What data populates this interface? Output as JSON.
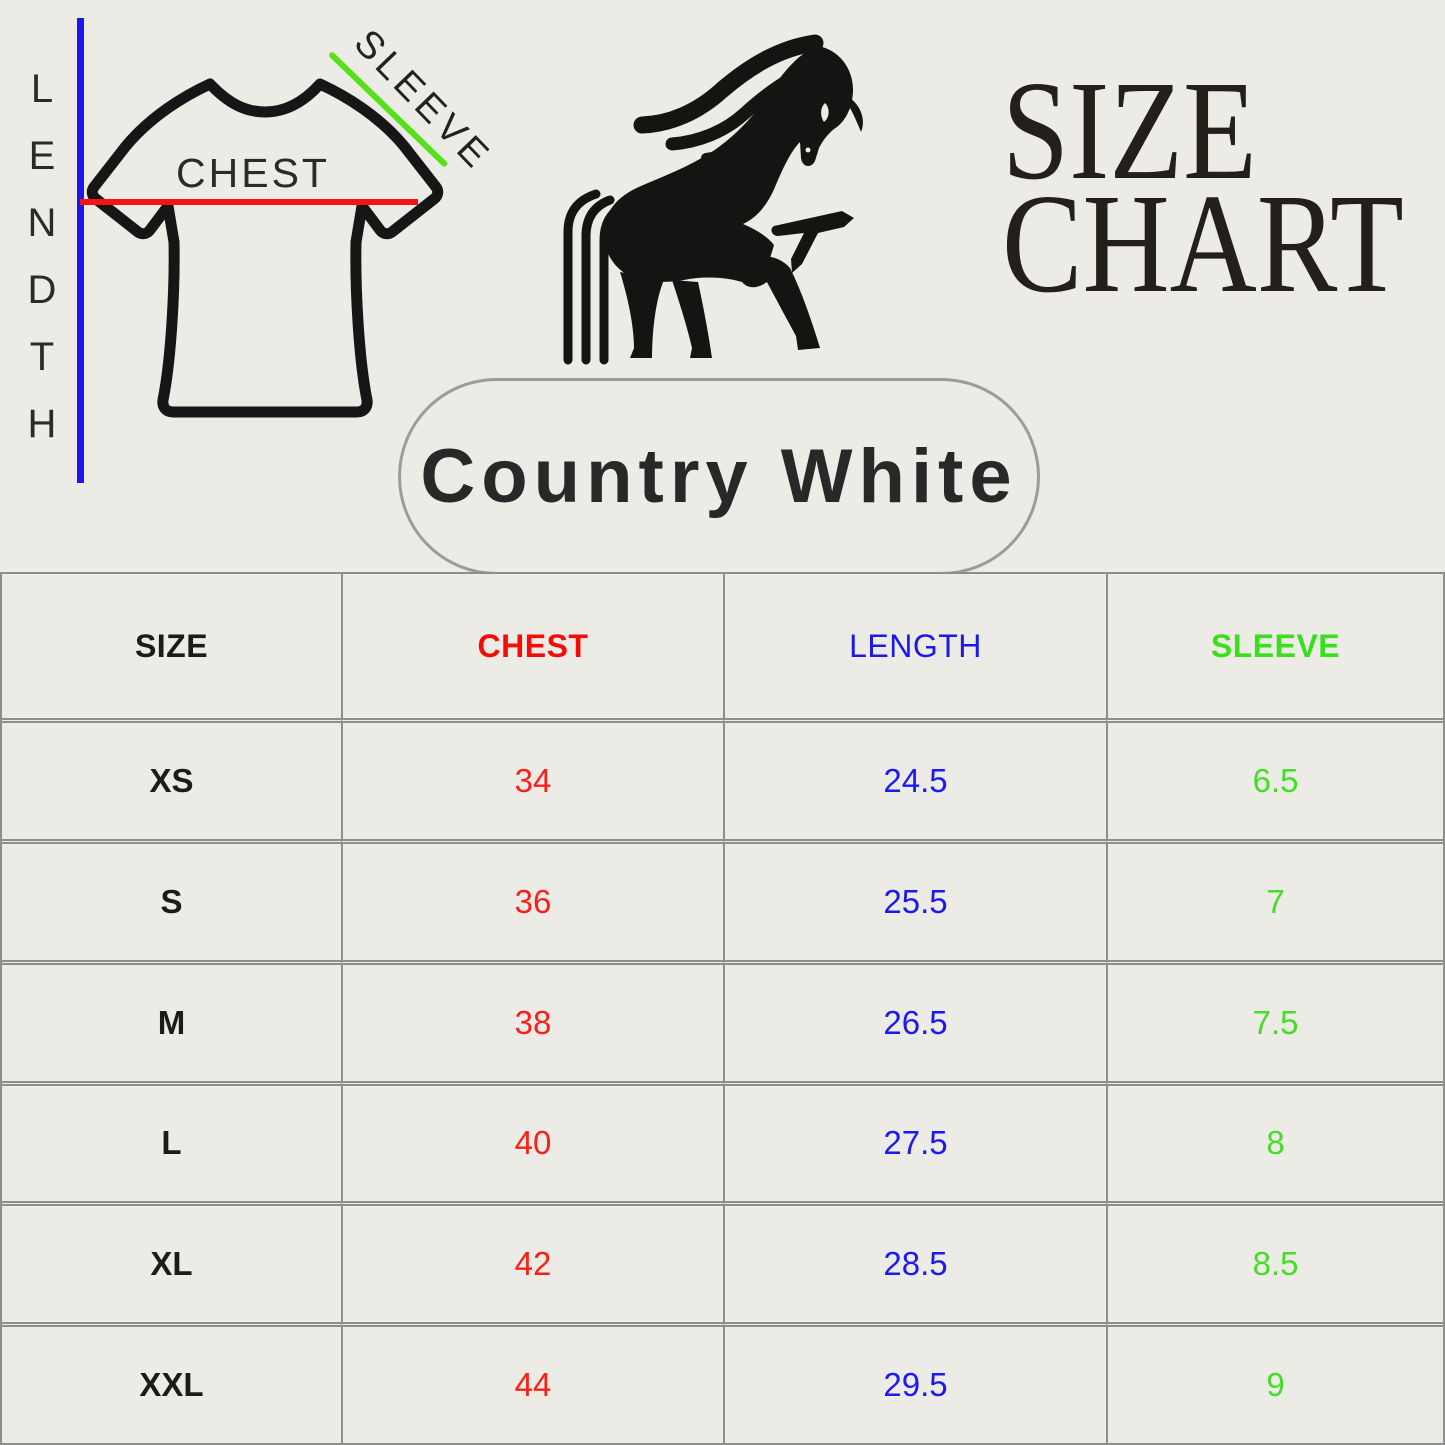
{
  "page": {
    "background": "#ECEBE6"
  },
  "measure_diagram": {
    "length_label": "LENDTH",
    "chest_label": "CHEST",
    "sleeve_label": "SLEEVE",
    "length_line_color": "#1A16F0",
    "chest_line_color": "#F51414",
    "sleeve_line_color": "#55E01A",
    "shirt_outline_color": "#161616"
  },
  "logo": {
    "name": "horse-logo",
    "color": "#161412"
  },
  "title": {
    "line1": "SIZE",
    "line2": "CHART",
    "color": "#232019"
  },
  "variant_badge": {
    "label": "Country White"
  },
  "chart_data": {
    "type": "table",
    "title": "SIZE CHART",
    "columns": [
      {
        "key": "size",
        "label": "SIZE",
        "color": "#1B1B1B",
        "bold": true
      },
      {
        "key": "chest",
        "label": "CHEST",
        "color": "#F20D08",
        "bold": true
      },
      {
        "key": "length",
        "label": "LENGTH",
        "color": "#1C18E8",
        "bold": false
      },
      {
        "key": "sleeve",
        "label": "SLEEVE",
        "color": "#39DE1C",
        "bold": true
      }
    ],
    "rows": [
      {
        "size": "XS",
        "chest": "34",
        "length": "24.5",
        "sleeve": "6.5"
      },
      {
        "size": "S",
        "chest": "36",
        "length": "25.5",
        "sleeve": "7"
      },
      {
        "size": "M",
        "chest": "38",
        "length": "26.5",
        "sleeve": "7.5"
      },
      {
        "size": "L",
        "chest": "40",
        "length": "27.5",
        "sleeve": "8"
      },
      {
        "size": "XL",
        "chest": "42",
        "length": "28.5",
        "sleeve": "8.5"
      },
      {
        "size": "XXL",
        "chest": "44",
        "length": "29.5",
        "sleeve": "9"
      }
    ],
    "value_colors": {
      "size": "#1B1B1B",
      "chest": "#F7211A",
      "length": "#1D1AEE",
      "sleeve": "#44DE26"
    }
  }
}
